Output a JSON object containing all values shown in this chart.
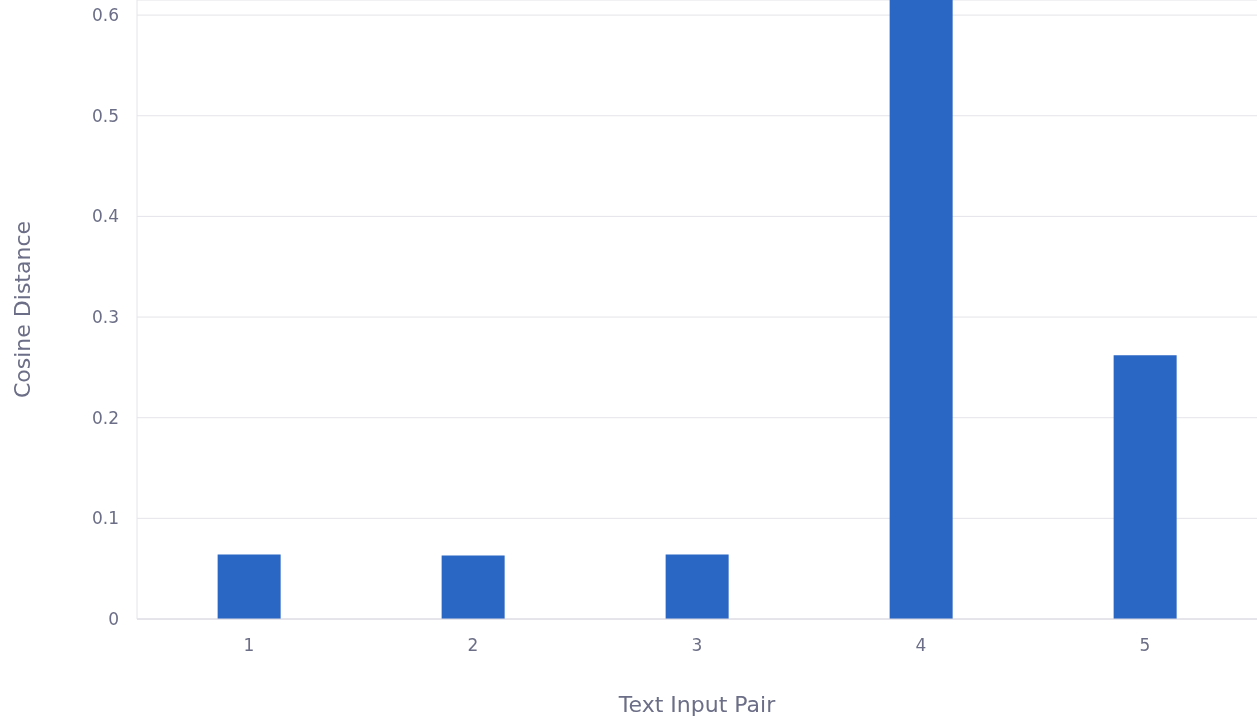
{
  "chart_data": {
    "type": "bar",
    "xlabel": "Text Input Pair",
    "ylabel": "Cosine Distance",
    "categories": [
      "1",
      "2",
      "3",
      "4",
      "5"
    ],
    "values": [
      0.064,
      0.063,
      0.064,
      0.615,
      0.262
    ],
    "color": "#2a66c4",
    "ylim": [
      0,
      0.615
    ],
    "yticks": [
      0,
      0.1,
      0.2,
      0.3,
      0.4,
      0.5,
      0.6
    ],
    "grid": "y"
  }
}
